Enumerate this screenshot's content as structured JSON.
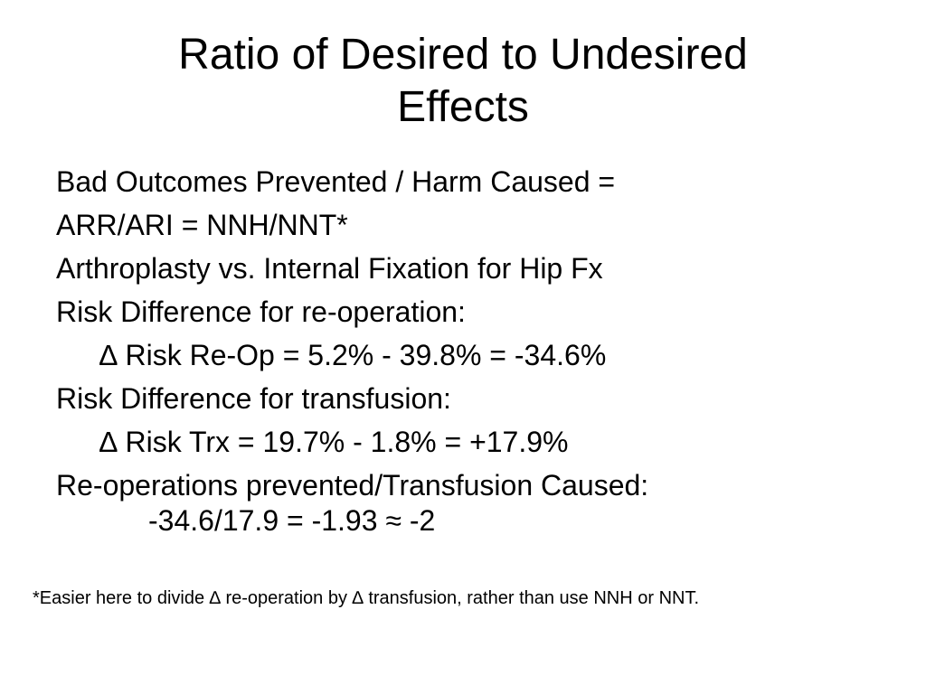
{
  "slide": {
    "title_line1": "Ratio of Desired to Undesired",
    "title_line2": "Effects",
    "lines": [
      "Bad Outcomes Prevented / Harm Caused =",
      "ARR/ARI = NNH/NNT*",
      "Arthroplasty vs. Internal Fixation for Hip Fx",
      "Risk Difference for re-operation:",
      "∆ Risk Re-Op = 5.2% - 39.8%  =  -34.6%",
      "Risk Difference for transfusion:",
      "∆ Risk Trx  = 19.7% - 1.8%   =  +17.9%",
      "Re-operations prevented/Transfusion Caused:",
      "-34.6/17.9 = -1.93 ≈ -2"
    ],
    "footnote": "*Easier here to divide ∆ re-operation by ∆ transfusion, rather than use NNH or NNT."
  }
}
